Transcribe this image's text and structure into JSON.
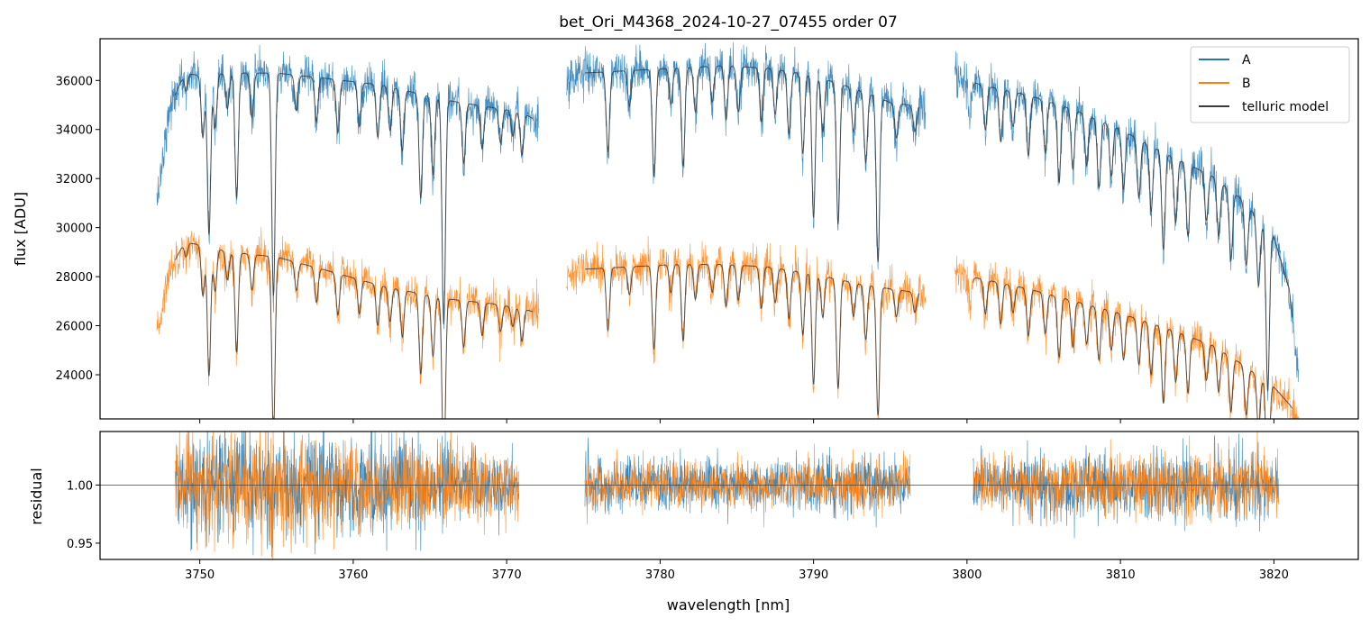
{
  "chart_data": {
    "type": "line",
    "title": "bet_Ori_M4368_2024-10-27_07455  order 07",
    "xlabel": "wavelength [nm]",
    "xlim": [
      3743.5,
      3825.5
    ],
    "x_ticks": [
      3750,
      3760,
      3770,
      3780,
      3790,
      3800,
      3810,
      3820
    ],
    "x_tick_labels": [
      "3750",
      "3760",
      "3770",
      "3780",
      "3790",
      "3800",
      "3810",
      "3820"
    ],
    "top_panel": {
      "ylabel": "flux [ADU]",
      "ylim": [
        22200,
        37700
      ],
      "y_ticks": [
        24000,
        26000,
        28000,
        30000,
        32000,
        34000,
        36000
      ],
      "y_tick_labels": [
        "24000",
        "26000",
        "28000",
        "30000",
        "32000",
        "34000",
        "36000"
      ],
      "segments": [
        [
          3747.2,
          3772.1
        ],
        [
          3773.9,
          3797.3
        ],
        [
          3799.2,
          3821.6
        ]
      ],
      "series": [
        {
          "name": "A",
          "color": "#1f77b4",
          "noise": 420,
          "points": [
            [
              3747.2,
              31000
            ],
            [
              3748.0,
              34800
            ],
            [
              3749.0,
              36300
            ],
            [
              3750.0,
              36200
            ],
            [
              3752.0,
              36300
            ],
            [
              3755.0,
              36300
            ],
            [
              3758.0,
              36100
            ],
            [
              3762.0,
              35800
            ],
            [
              3766.0,
              35200
            ],
            [
              3769.0,
              34900
            ],
            [
              3771.0,
              34700
            ],
            [
              3772.1,
              34300
            ],
            [
              3773.9,
              35800
            ],
            [
              3775.0,
              36300
            ],
            [
              3778.0,
              36400
            ],
            [
              3781.0,
              36500
            ],
            [
              3784.0,
              36600
            ],
            [
              3787.0,
              36500
            ],
            [
              3790.0,
              36200
            ],
            [
              3793.0,
              35600
            ],
            [
              3795.0,
              35100
            ],
            [
              3797.3,
              34900
            ],
            [
              3799.2,
              36200
            ],
            [
              3801.0,
              35800
            ],
            [
              3804.0,
              35400
            ],
            [
              3807.0,
              34800
            ],
            [
              3810.0,
              34000
            ],
            [
              3813.0,
              33000
            ],
            [
              3816.0,
              32100
            ],
            [
              3818.0,
              31100
            ],
            [
              3820.0,
              29600
            ],
            [
              3821.0,
              27500
            ],
            [
              3821.6,
              24000
            ]
          ]
        },
        {
          "name": "B",
          "color": "#ff7f0e",
          "noise": 380,
          "points": [
            [
              3747.2,
              25500
            ],
            [
              3748.0,
              28200
            ],
            [
              3749.0,
              29400
            ],
            [
              3750.0,
              29300
            ],
            [
              3752.0,
              29000
            ],
            [
              3755.0,
              28800
            ],
            [
              3758.0,
              28300
            ],
            [
              3762.0,
              27600
            ],
            [
              3766.0,
              27100
            ],
            [
              3769.0,
              26900
            ],
            [
              3771.0,
              26700
            ],
            [
              3772.1,
              26500
            ],
            [
              3773.9,
              27800
            ],
            [
              3775.0,
              28300
            ],
            [
              3778.0,
              28400
            ],
            [
              3781.0,
              28500
            ],
            [
              3784.0,
              28500
            ],
            [
              3787.0,
              28400
            ],
            [
              3790.0,
              28100
            ],
            [
              3793.0,
              27700
            ],
            [
              3795.0,
              27500
            ],
            [
              3797.3,
              27300
            ],
            [
              3799.2,
              28100
            ],
            [
              3801.0,
              27900
            ],
            [
              3804.0,
              27500
            ],
            [
              3807.0,
              27000
            ],
            [
              3810.0,
              26500
            ],
            [
              3813.0,
              25900
            ],
            [
              3816.0,
              25200
            ],
            [
              3818.0,
              24400
            ],
            [
              3820.0,
              23500
            ],
            [
              3821.0,
              22800
            ],
            [
              3821.6,
              22300
            ]
          ]
        },
        {
          "name": "telluric model",
          "color": "#3a3a3a",
          "models": [
            "A",
            "B"
          ]
        }
      ],
      "telluric_lines": [
        [
          3749.1,
          0.02
        ],
        [
          3750.2,
          0.07
        ],
        [
          3750.6,
          0.18
        ],
        [
          3751.0,
          0.06
        ],
        [
          3751.8,
          0.04
        ],
        [
          3752.4,
          0.14
        ],
        [
          3753.4,
          0.05
        ],
        [
          3754.8,
          0.25
        ],
        [
          3756.3,
          0.04
        ],
        [
          3757.6,
          0.05
        ],
        [
          3759.0,
          0.06
        ],
        [
          3760.4,
          0.05
        ],
        [
          3761.6,
          0.06
        ],
        [
          3762.4,
          0.05
        ],
        [
          3763.2,
          0.07
        ],
        [
          3764.4,
          0.12
        ],
        [
          3765.2,
          0.09
        ],
        [
          3765.9,
          0.26
        ],
        [
          3767.2,
          0.07
        ],
        [
          3768.4,
          0.05
        ],
        [
          3769.6,
          0.04
        ],
        [
          3770.4,
          0.03
        ],
        [
          3771.0,
          0.05
        ],
        [
          3776.6,
          0.09
        ],
        [
          3778.0,
          0.04
        ],
        [
          3779.6,
          0.12
        ],
        [
          3780.7,
          0.04
        ],
        [
          3781.5,
          0.11
        ],
        [
          3782.3,
          0.05
        ],
        [
          3783.4,
          0.04
        ],
        [
          3784.3,
          0.06
        ],
        [
          3785.1,
          0.05
        ],
        [
          3786.6,
          0.06
        ],
        [
          3787.5,
          0.05
        ],
        [
          3788.4,
          0.07
        ],
        [
          3789.3,
          0.09
        ],
        [
          3790.0,
          0.16
        ],
        [
          3790.6,
          0.06
        ],
        [
          3791.6,
          0.16
        ],
        [
          3792.6,
          0.05
        ],
        [
          3793.4,
          0.08
        ],
        [
          3794.2,
          0.19
        ],
        [
          3795.4,
          0.04
        ],
        [
          3796.6,
          0.03
        ],
        [
          3800.2,
          0.04
        ],
        [
          3801.2,
          0.05
        ],
        [
          3802.2,
          0.06
        ],
        [
          3803.0,
          0.04
        ],
        [
          3804.0,
          0.07
        ],
        [
          3805.1,
          0.06
        ],
        [
          3806.0,
          0.09
        ],
        [
          3806.9,
          0.07
        ],
        [
          3807.8,
          0.06
        ],
        [
          3808.6,
          0.08
        ],
        [
          3809.4,
          0.06
        ],
        [
          3810.2,
          0.07
        ],
        [
          3811.2,
          0.07
        ],
        [
          3812.0,
          0.08
        ],
        [
          3812.8,
          0.12
        ],
        [
          3813.6,
          0.08
        ],
        [
          3814.4,
          0.09
        ],
        [
          3815.6,
          0.06
        ],
        [
          3816.4,
          0.07
        ],
        [
          3817.2,
          0.09
        ],
        [
          3818.2,
          0.08
        ],
        [
          3819.0,
          0.09
        ],
        [
          3819.6,
          0.22
        ]
      ]
    },
    "bottom_panel": {
      "ylabel": "residual",
      "ylim": [
        0.936,
        1.046
      ],
      "y_ticks": [
        0.95,
        1.0
      ],
      "y_tick_labels": [
        "0.95",
        "1.00"
      ],
      "reference_line": 1.0,
      "segments": [
        [
          3748.4,
          3770.8
        ],
        [
          3775.1,
          3796.3
        ],
        [
          3800.4,
          3820.3
        ]
      ],
      "noise_profile": [
        [
          3748.4,
          0.03
        ],
        [
          3756.0,
          0.034
        ],
        [
          3762.0,
          0.03
        ],
        [
          3770.8,
          0.018
        ],
        [
          3775.1,
          0.016
        ],
        [
          3785.0,
          0.015
        ],
        [
          3796.3,
          0.016
        ],
        [
          3800.4,
          0.018
        ],
        [
          3810.0,
          0.02
        ],
        [
          3818.5,
          0.022
        ],
        [
          3820.3,
          0.016
        ]
      ],
      "series": [
        {
          "name": "A",
          "color": "#1f77b4"
        },
        {
          "name": "B",
          "color": "#ff7f0e"
        }
      ]
    },
    "legend": {
      "position": "top-right",
      "entries": [
        {
          "label": "A",
          "color": "#1f77b4"
        },
        {
          "label": "B",
          "color": "#ff7f0e"
        },
        {
          "label": "telluric model",
          "color": "#3a3a3a"
        }
      ]
    }
  }
}
